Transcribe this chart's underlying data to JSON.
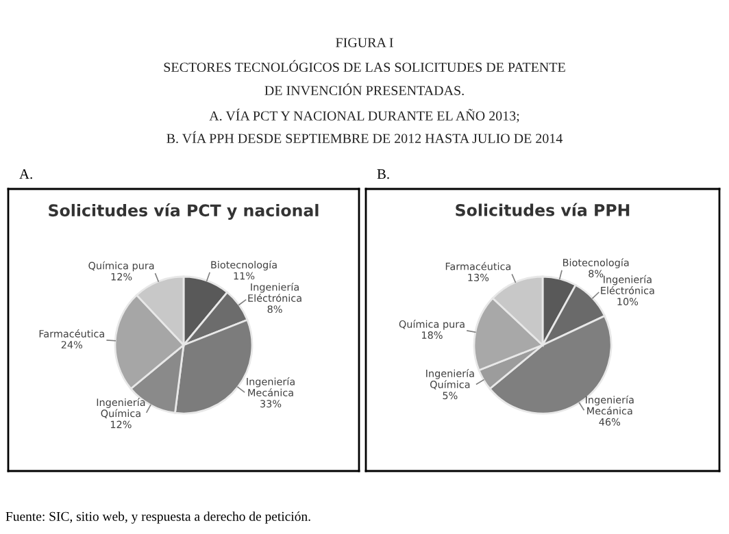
{
  "chart_data": [
    {
      "type": "pie",
      "title": "Solicitudes vía PCT y nacional",
      "annotations": [
        "FIGURA I",
        "SECTORES TECNOLÓGICOS DE LAS SOLICITUDES DE PATENTE",
        "DE INVENCIÓN PRESENTADAS.",
        "A. VÍA PCT Y NACIONAL DURANTE EL AÑO 2013;",
        "B. VÍA PPH DESDE SEPTIEMBRE DE 2012 HASTA JULIO DE 2014",
        "A."
      ],
      "categories": [
        "Biotecnología",
        "Ingeniería\nEléctrónica",
        "Ingeniería\nMecánica",
        "Ingeniería\nQuímica",
        "Farmacéutica",
        "Química pura"
      ],
      "values": [
        11,
        8,
        33,
        12,
        24,
        12
      ],
      "value_labels": [
        "11%",
        "8%",
        "33%",
        "12%",
        "24%",
        "12%"
      ],
      "colors": [
        "#595959",
        "#6c6c6c",
        "#7c7c7c",
        "#8a8a8a",
        "#a6a6a6",
        "#c8c8c8"
      ]
    },
    {
      "type": "pie",
      "title": "Solicitudes vía PPH",
      "annotations": [
        "B.",
        "Fuente: SIC, sitio web, y respuesta a derecho de petición."
      ],
      "categories": [
        "Biotecnología",
        "Ingeniería\nEléctrónica",
        "Ingeniería\nMecánica",
        "Ingeniería\nQuímica",
        "Química pura",
        "Farmacéutica"
      ],
      "values": [
        8,
        10,
        46,
        5,
        18,
        13
      ],
      "value_labels": [
        "8%",
        "10%",
        "46%",
        "5%",
        "18%",
        "13%"
      ],
      "colors": [
        "#595959",
        "#6a6a6a",
        "#7f7f7f",
        "#9c9c9c",
        "#a8a8a8",
        "#c8c8c8"
      ]
    }
  ]
}
